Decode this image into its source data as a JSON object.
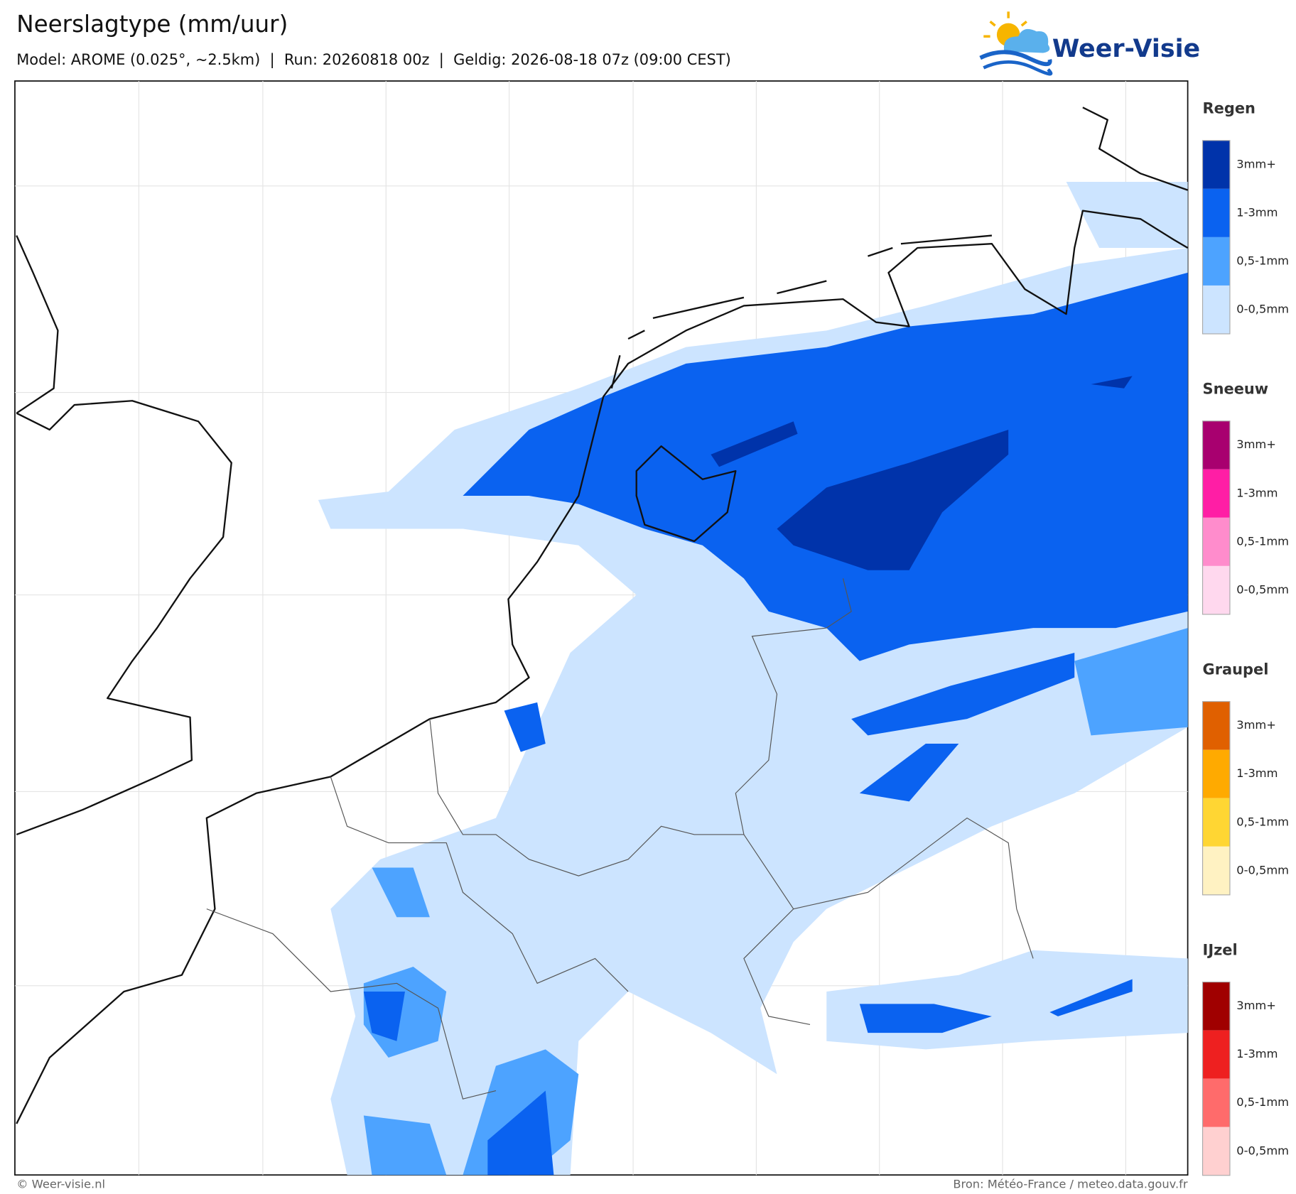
{
  "header": {
    "title": "Neerslagtype (mm/uur)",
    "subtitle": "Model: AROME (0.025°, ~2.5km)  |  Run: 20260818 00z  |  Geldig: 2026-08-18 07z (09:00 CEST)"
  },
  "logo": {
    "text": "Weer-Visie"
  },
  "legend": [
    {
      "title": "Regen",
      "levels": [
        "3mm+",
        "1-3mm",
        "0,5-1mm",
        "0-0,5mm"
      ],
      "colors": [
        "#0033aa",
        "#0a62f0",
        "#4da3ff",
        "#cce4ff"
      ]
    },
    {
      "title": "Sneeuw",
      "levels": [
        "3mm+",
        "1-3mm",
        "0,5-1mm",
        "0-0,5mm"
      ],
      "colors": [
        "#a8006f",
        "#ff1ea5",
        "#ff8ccc",
        "#ffd8ee"
      ]
    },
    {
      "title": "Graupel",
      "levels": [
        "3mm+",
        "1-3mm",
        "0,5-1mm",
        "0-0,5mm"
      ],
      "colors": [
        "#e06000",
        "#ffaa00",
        "#ffd633",
        "#fff2c2"
      ]
    },
    {
      "title": "IJzel",
      "levels": [
        "3mm+",
        "1-3mm",
        "0,5-1mm",
        "0-0,5mm"
      ],
      "colors": [
        "#a00000",
        "#ee2020",
        "#ff6b6b",
        "#ffd0d0"
      ]
    }
  ],
  "footer": {
    "left": "© Weer-visie.nl",
    "right": "Bron: Météo-France / meteo.data.gouv.fr"
  }
}
